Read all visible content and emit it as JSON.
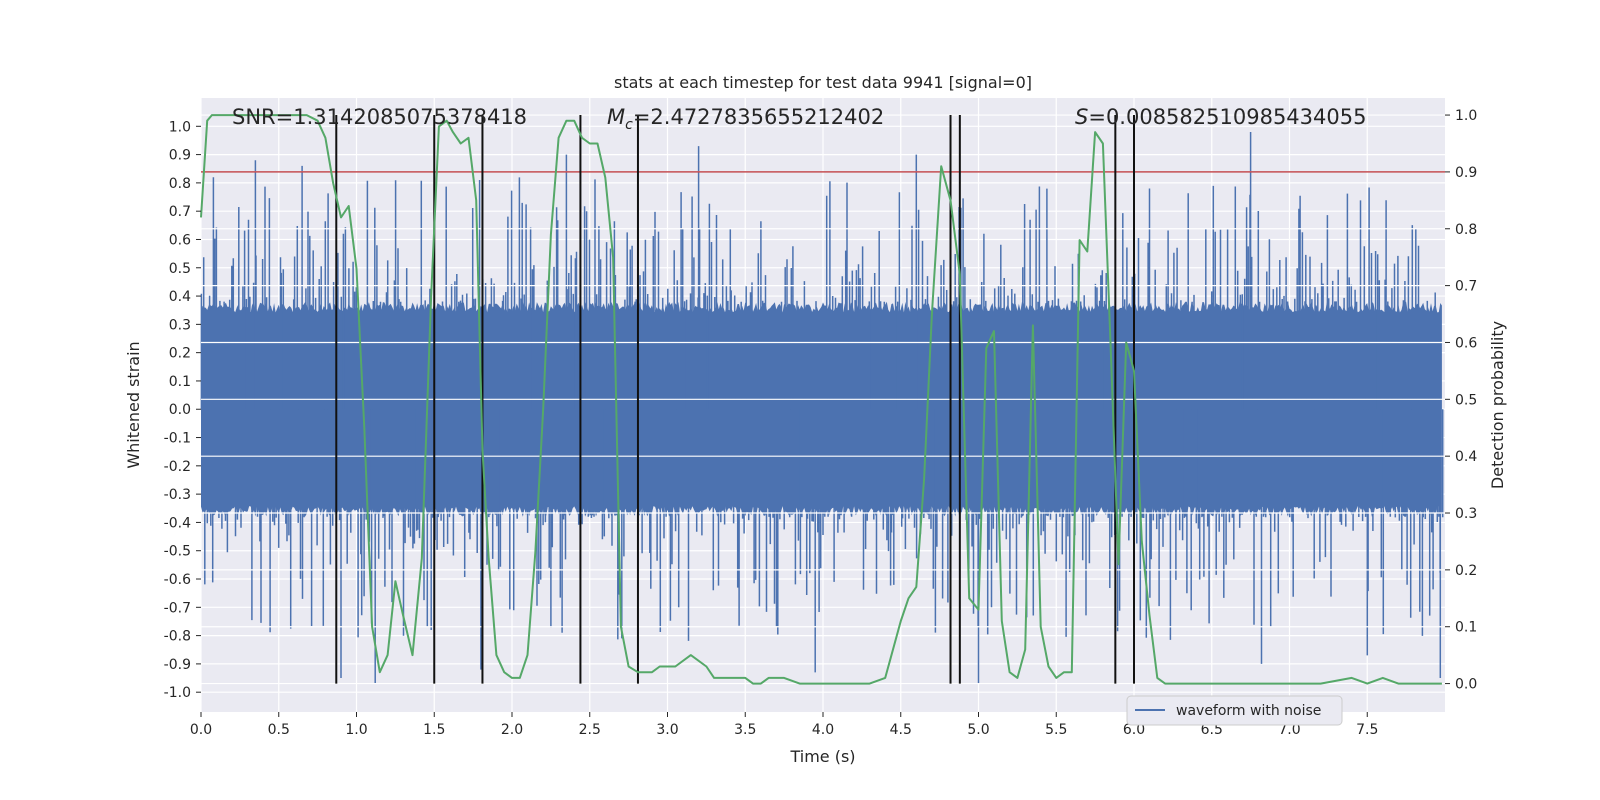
{
  "chart_data": {
    "type": "line",
    "title": "stats at each timestep for test data 9941 [signal=0]",
    "xlabel": "Time (s)",
    "ylabel": "Whitened strain",
    "ylabel_right": "Detection probability",
    "xlim": [
      0.0,
      8.0
    ],
    "ylim": [
      -1.07,
      1.1
    ],
    "ylim_right": [
      -0.05,
      1.03
    ],
    "x_ticks": [
      "0.0",
      "0.5",
      "1.0",
      "1.5",
      "2.0",
      "2.5",
      "3.0",
      "3.5",
      "4.0",
      "4.5",
      "5.0",
      "5.5",
      "6.0",
      "6.5",
      "7.0",
      "7.5"
    ],
    "y_ticks": [
      "-1.0",
      "-0.9",
      "-0.8",
      "-0.7",
      "-0.6",
      "-0.5",
      "-0.4",
      "-0.3",
      "-0.2",
      "-0.1",
      "0.0",
      "0.1",
      "0.2",
      "0.3",
      "0.4",
      "0.5",
      "0.6",
      "0.7",
      "0.8",
      "0.9",
      "1.0"
    ],
    "y_ticks_right": [
      "0.0",
      "0.1",
      "0.2",
      "0.3",
      "0.4",
      "0.5",
      "0.6",
      "0.7",
      "0.8",
      "0.9",
      "1.0"
    ],
    "threshold": 0.9,
    "annotations": {
      "snr": "SNR=1.3142085075378418",
      "mc_symbol": "M",
      "mc_sub": "c",
      "mc_value": "=2.4727835655212402",
      "s_symbol": "S",
      "s_value": "=0.008582510985434055"
    },
    "legend": [
      "waveform with noise"
    ],
    "vlines": [
      0.87,
      1.5,
      1.81,
      2.44,
      2.81,
      4.82,
      4.88,
      5.88,
      6.0
    ],
    "waveform": {
      "name": "waveform with noise",
      "dt": 0.002,
      "core_amplitude": 0.38,
      "spike_amplitude_max": 1.0,
      "notable_peaks": [
        [
          0.08,
          0.82
        ],
        [
          0.35,
          0.88
        ],
        [
          0.65,
          0.86
        ],
        [
          0.9,
          -0.95
        ],
        [
          1.12,
          -0.97
        ],
        [
          1.8,
          -0.92
        ],
        [
          2.35,
          0.9
        ],
        [
          3.2,
          0.93
        ],
        [
          3.95,
          -0.93
        ],
        [
          4.6,
          0.9
        ],
        [
          5.0,
          -0.97
        ],
        [
          6.1,
          0.78
        ],
        [
          6.75,
          0.98
        ],
        [
          6.82,
          -0.9
        ],
        [
          7.5,
          -0.87
        ],
        [
          7.97,
          -0.95
        ]
      ]
    },
    "series": [
      {
        "name": "detection probability",
        "axis": "right",
        "x": [
          0.0,
          0.04,
          0.07,
          0.12,
          0.2,
          0.3,
          0.4,
          0.5,
          0.6,
          0.68,
          0.75,
          0.8,
          0.85,
          0.9,
          0.95,
          1.0,
          1.05,
          1.1,
          1.15,
          1.2,
          1.25,
          1.3,
          1.36,
          1.42,
          1.48,
          1.53,
          1.58,
          1.62,
          1.67,
          1.72,
          1.77,
          1.81,
          1.85,
          1.9,
          1.95,
          2.0,
          2.05,
          2.1,
          2.15,
          2.2,
          2.25,
          2.3,
          2.35,
          2.4,
          2.45,
          2.5,
          2.55,
          2.6,
          2.65,
          2.7,
          2.75,
          2.81,
          2.85,
          2.9,
          2.95,
          3.0,
          3.05,
          3.15,
          3.25,
          3.3,
          3.35,
          3.4,
          3.45,
          3.5,
          3.55,
          3.6,
          3.65,
          3.75,
          3.85,
          4.0,
          4.1,
          4.2,
          4.3,
          4.4,
          4.5,
          4.55,
          4.6,
          4.65,
          4.7,
          4.76,
          4.82,
          4.88,
          4.94,
          5.0,
          5.05,
          5.1,
          5.15,
          5.2,
          5.25,
          5.3,
          5.35,
          5.4,
          5.45,
          5.5,
          5.55,
          5.6,
          5.65,
          5.7,
          5.75,
          5.8,
          5.85,
          5.9,
          5.95,
          6.0,
          6.05,
          6.1,
          6.15,
          6.2,
          6.25,
          6.3,
          6.4,
          6.6,
          6.8,
          7.0,
          7.2,
          7.4,
          7.5,
          7.6,
          7.7,
          7.8,
          7.9,
          7.98
        ],
        "y": [
          0.82,
          0.99,
          1.0,
          1.0,
          1.0,
          1.0,
          1.0,
          1.0,
          1.0,
          1.0,
          0.99,
          0.96,
          0.88,
          0.82,
          0.84,
          0.73,
          0.45,
          0.1,
          0.02,
          0.05,
          0.18,
          0.12,
          0.05,
          0.22,
          0.68,
          0.98,
          0.99,
          0.97,
          0.95,
          0.96,
          0.85,
          0.41,
          0.22,
          0.05,
          0.02,
          0.01,
          0.01,
          0.05,
          0.23,
          0.48,
          0.79,
          0.96,
          0.99,
          0.99,
          0.96,
          0.95,
          0.95,
          0.89,
          0.75,
          0.1,
          0.03,
          0.02,
          0.02,
          0.02,
          0.03,
          0.03,
          0.03,
          0.05,
          0.03,
          0.01,
          0.01,
          0.01,
          0.01,
          0.01,
          0.0,
          0.0,
          0.01,
          0.01,
          0.0,
          0.0,
          0.0,
          0.0,
          0.0,
          0.01,
          0.11,
          0.15,
          0.17,
          0.36,
          0.65,
          0.91,
          0.85,
          0.72,
          0.15,
          0.13,
          0.59,
          0.62,
          0.11,
          0.02,
          0.01,
          0.06,
          0.63,
          0.1,
          0.03,
          0.01,
          0.02,
          0.02,
          0.78,
          0.76,
          0.97,
          0.95,
          0.59,
          0.21,
          0.6,
          0.55,
          0.25,
          0.12,
          0.01,
          0.0,
          0.0,
          0.0,
          0.0,
          0.0,
          0.0,
          0.0,
          0.0,
          0.01,
          0.0,
          0.01,
          0.0,
          0.0,
          0.0,
          0.0
        ]
      }
    ]
  }
}
